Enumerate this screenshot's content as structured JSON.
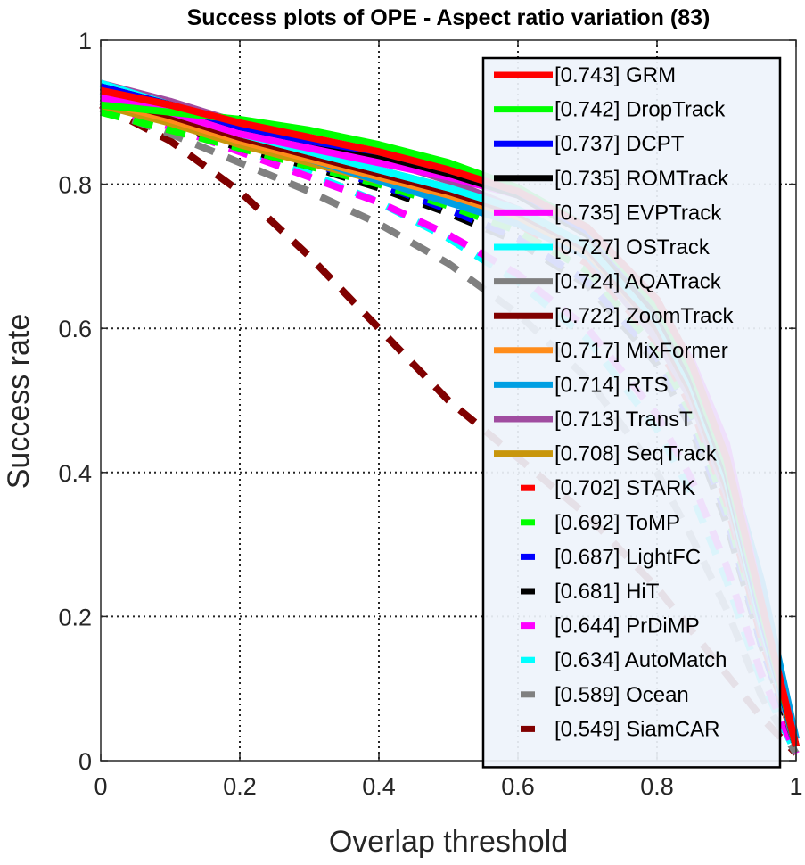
{
  "chart_data": {
    "type": "line",
    "title": "Success plots of OPE - Aspect ratio variation (83)",
    "xlabel": "Overlap threshold",
    "ylabel": "Success rate",
    "xlim": [
      0,
      1
    ],
    "ylim": [
      0,
      1
    ],
    "xticks": [
      "0",
      "0.2",
      "0.4",
      "0.6",
      "0.8",
      "1"
    ],
    "yticks": [
      "0",
      "0.2",
      "0.4",
      "0.6",
      "0.8",
      "1"
    ],
    "grid": true,
    "legend_position": "top-right",
    "x": [
      0,
      0.1,
      0.2,
      0.3,
      0.4,
      0.5,
      0.6,
      0.7,
      0.8,
      0.85,
      0.9,
      0.95,
      1.0
    ],
    "series": [
      {
        "name": "GRM",
        "score": "0.743",
        "legend_label": "[0.743] GRM",
        "color": "#ff0000",
        "dash": false,
        "values": [
          0.93,
          0.91,
          0.885,
          0.865,
          0.845,
          0.82,
          0.79,
          0.74,
          0.64,
          0.55,
          0.42,
          0.22,
          0.02
        ]
      },
      {
        "name": "DropTrack",
        "score": "0.742",
        "legend_label": "[0.742] DropTrack",
        "color": "#00ff00",
        "dash": false,
        "values": [
          0.91,
          0.9,
          0.89,
          0.875,
          0.855,
          0.83,
          0.795,
          0.74,
          0.63,
          0.54,
          0.41,
          0.21,
          0.02
        ]
      },
      {
        "name": "DCPT",
        "score": "0.737",
        "legend_label": "[0.737] DCPT",
        "color": "#0000ff",
        "dash": false,
        "values": [
          0.935,
          0.91,
          0.88,
          0.86,
          0.845,
          0.82,
          0.79,
          0.735,
          0.63,
          0.54,
          0.41,
          0.2,
          0.02
        ]
      },
      {
        "name": "ROMTrack",
        "score": "0.735",
        "legend_label": "[0.735] ROMTrack",
        "color": "#000000",
        "dash": false,
        "values": [
          0.935,
          0.91,
          0.88,
          0.86,
          0.84,
          0.815,
          0.785,
          0.73,
          0.62,
          0.53,
          0.4,
          0.2,
          0.02
        ]
      },
      {
        "name": "EVPTrack",
        "score": "0.735",
        "legend_label": "[0.735] EVPTrack",
        "color": "#ff00ff",
        "dash": false,
        "values": [
          0.92,
          0.9,
          0.87,
          0.85,
          0.83,
          0.81,
          0.785,
          0.735,
          0.63,
          0.555,
          0.44,
          0.22,
          0.02
        ]
      },
      {
        "name": "OSTrack",
        "score": "0.727",
        "legend_label": "[0.727] OSTrack",
        "color": "#00ffff",
        "dash": false,
        "values": [
          0.94,
          0.91,
          0.87,
          0.845,
          0.82,
          0.795,
          0.765,
          0.715,
          0.61,
          0.52,
          0.39,
          0.19,
          0.02
        ]
      },
      {
        "name": "AQATrack",
        "score": "0.724",
        "legend_label": "[0.724] AQATrack",
        "color": "#808080",
        "dash": false,
        "values": [
          0.925,
          0.9,
          0.87,
          0.845,
          0.82,
          0.795,
          0.765,
          0.715,
          0.61,
          0.52,
          0.39,
          0.19,
          0.02
        ]
      },
      {
        "name": "ZoomTrack",
        "score": "0.722",
        "legend_label": "[0.722] ZoomTrack",
        "color": "#800000",
        "dash": false,
        "values": [
          0.92,
          0.895,
          0.865,
          0.84,
          0.815,
          0.79,
          0.76,
          0.71,
          0.6,
          0.51,
          0.38,
          0.19,
          0.02
        ]
      },
      {
        "name": "MixFormer",
        "score": "0.717",
        "legend_label": "[0.717] MixFormer",
        "color": "#ff8c1a",
        "dash": false,
        "values": [
          0.915,
          0.89,
          0.86,
          0.835,
          0.81,
          0.785,
          0.755,
          0.705,
          0.6,
          0.51,
          0.38,
          0.19,
          0.02
        ]
      },
      {
        "name": "RTS",
        "score": "0.714",
        "legend_label": "[0.714] RTS",
        "color": "#009fe3",
        "dash": false,
        "values": [
          0.93,
          0.9,
          0.865,
          0.835,
          0.805,
          0.775,
          0.745,
          0.7,
          0.61,
          0.53,
          0.42,
          0.25,
          0.03
        ]
      },
      {
        "name": "TransT",
        "score": "0.713",
        "legend_label": "[0.713] TransT",
        "color": "#a04ca0",
        "dash": false,
        "values": [
          0.94,
          0.915,
          0.885,
          0.86,
          0.835,
          0.805,
          0.765,
          0.7,
          0.585,
          0.5,
          0.37,
          0.18,
          0.02
        ]
      },
      {
        "name": "SeqTrack",
        "score": "0.708",
        "legend_label": "[0.708] SeqTrack",
        "color": "#c8960c",
        "dash": false,
        "values": [
          0.91,
          0.885,
          0.855,
          0.83,
          0.805,
          0.78,
          0.75,
          0.7,
          0.595,
          0.5,
          0.37,
          0.18,
          0.02
        ]
      },
      {
        "name": "STARK",
        "score": "0.702",
        "legend_label": "[0.702] STARK",
        "color": "#ff0000",
        "dash": true,
        "values": [
          0.915,
          0.89,
          0.86,
          0.835,
          0.81,
          0.78,
          0.745,
          0.69,
          0.58,
          0.49,
          0.36,
          0.17,
          0.02
        ]
      },
      {
        "name": "ToMP",
        "score": "0.692",
        "legend_label": "[0.692] ToMP",
        "color": "#00ff00",
        "dash": true,
        "values": [
          0.9,
          0.875,
          0.85,
          0.825,
          0.8,
          0.77,
          0.735,
          0.68,
          0.57,
          0.48,
          0.35,
          0.17,
          0.02
        ]
      },
      {
        "name": "LightFC",
        "score": "0.687",
        "legend_label": "[0.687] LightFC",
        "color": "#0000ff",
        "dash": true,
        "values": [
          0.92,
          0.89,
          0.855,
          0.83,
          0.8,
          0.765,
          0.725,
          0.665,
          0.56,
          0.47,
          0.34,
          0.16,
          0.02
        ]
      },
      {
        "name": "HiT",
        "score": "0.681",
        "legend_label": "[0.681] HiT",
        "color": "#000000",
        "dash": true,
        "values": [
          0.915,
          0.885,
          0.85,
          0.825,
          0.795,
          0.76,
          0.72,
          0.66,
          0.55,
          0.46,
          0.33,
          0.16,
          0.02
        ]
      },
      {
        "name": "PrDiMP",
        "score": "0.644",
        "legend_label": "[0.644] PrDiMP",
        "color": "#ff00ff",
        "dash": true,
        "values": [
          0.91,
          0.88,
          0.845,
          0.81,
          0.775,
          0.73,
          0.675,
          0.6,
          0.48,
          0.39,
          0.27,
          0.12,
          0.01
        ]
      },
      {
        "name": "AutoMatch",
        "score": "0.634",
        "legend_label": "[0.634] AutoMatch",
        "color": "#00ffff",
        "dash": true,
        "values": [
          0.915,
          0.885,
          0.85,
          0.815,
          0.775,
          0.725,
          0.665,
          0.585,
          0.46,
          0.37,
          0.25,
          0.11,
          0.01
        ]
      },
      {
        "name": "Ocean",
        "score": "0.589",
        "legend_label": "[0.589] Ocean",
        "color": "#808080",
        "dash": true,
        "values": [
          0.905,
          0.87,
          0.83,
          0.79,
          0.745,
          0.69,
          0.62,
          0.53,
          0.4,
          0.31,
          0.21,
          0.09,
          0.01
        ]
      },
      {
        "name": "SiamCAR",
        "score": "0.549",
        "legend_label": "[0.549] SiamCAR",
        "color": "#800000",
        "dash": true,
        "values": [
          0.91,
          0.86,
          0.79,
          0.7,
          0.6,
          0.5,
          0.42,
          0.34,
          0.24,
          0.18,
          0.12,
          0.06,
          0.01
        ]
      }
    ]
  }
}
